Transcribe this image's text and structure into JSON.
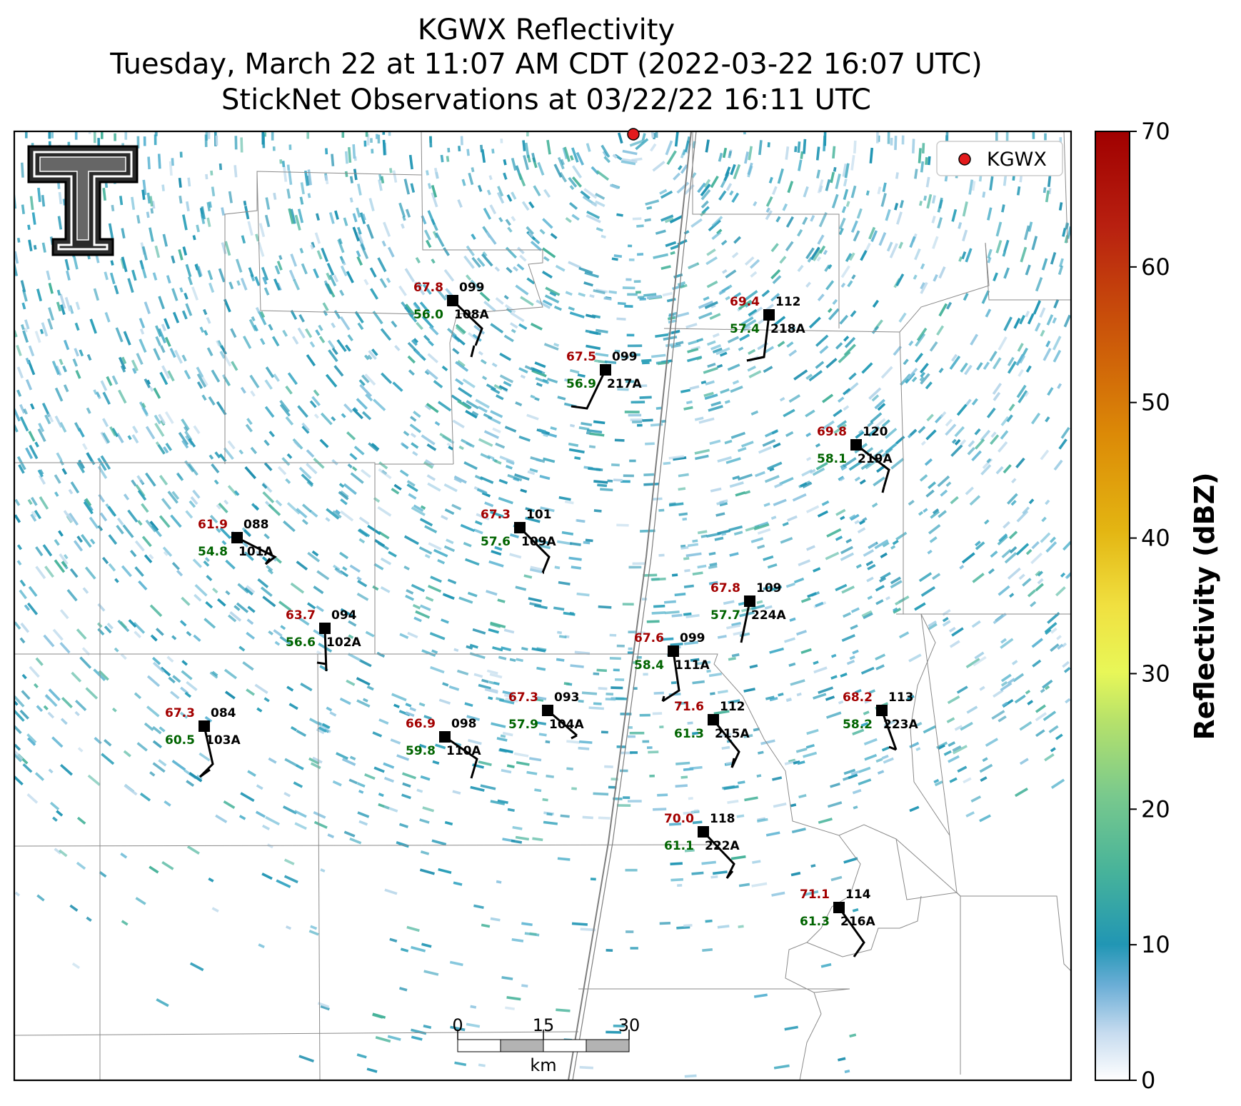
{
  "title": {
    "line1": "KGWX Reflectivity",
    "line2": "Tuesday, March 22 at 11:07 AM CDT (2022-03-22 16:07 UTC)",
    "line3": "StickNet Observations at 03/22/22 16:11 UTC"
  },
  "legend": {
    "label": "KGWX",
    "marker_color": "#e31a1c"
  },
  "colorbar": {
    "label": "Reflectivity (dBZ)",
    "min": 0,
    "max": 70,
    "ticks": [
      "0",
      "10",
      "20",
      "30",
      "40",
      "50",
      "60",
      "70"
    ]
  },
  "scalebar": {
    "labels": [
      "0",
      "15",
      "30"
    ],
    "unit": "km"
  },
  "stations": [
    {
      "id": "108A",
      "temp": "67.8",
      "dew": "56.0",
      "pres": "099"
    },
    {
      "id": "217A",
      "temp": "67.5",
      "dew": "56.9",
      "pres": "099"
    },
    {
      "id": "218A",
      "temp": "69.4",
      "dew": "57.4",
      "pres": "112"
    },
    {
      "id": "219A",
      "temp": "69.8",
      "dew": "58.1",
      "pres": "120"
    },
    {
      "id": "101A",
      "temp": "61.9",
      "dew": "54.8",
      "pres": "088"
    },
    {
      "id": "109A",
      "temp": "67.3",
      "dew": "57.6",
      "pres": "101"
    },
    {
      "id": "102A",
      "temp": "63.7",
      "dew": "56.6",
      "pres": "094"
    },
    {
      "id": "224A",
      "temp": "67.8",
      "dew": "57.7",
      "pres": "109"
    },
    {
      "id": "111A",
      "temp": "67.6",
      "dew": "58.4",
      "pres": "099"
    },
    {
      "id": "103A",
      "temp": "67.3",
      "dew": "60.5",
      "pres": "084"
    },
    {
      "id": "110A",
      "temp": "66.9",
      "dew": "59.8",
      "pres": "098"
    },
    {
      "id": "104A",
      "temp": "67.3",
      "dew": "57.9",
      "pres": "093"
    },
    {
      "id": "215A",
      "temp": "71.6",
      "dew": "61.3",
      "pres": "112"
    },
    {
      "id": "223A",
      "temp": "68.2",
      "dew": "58.2",
      "pres": "113"
    },
    {
      "id": "222A",
      "temp": "70.0",
      "dew": "61.1",
      "pres": "118"
    },
    {
      "id": "216A",
      "temp": "71.1",
      "dew": "61.3",
      "pres": "114"
    }
  ]
}
